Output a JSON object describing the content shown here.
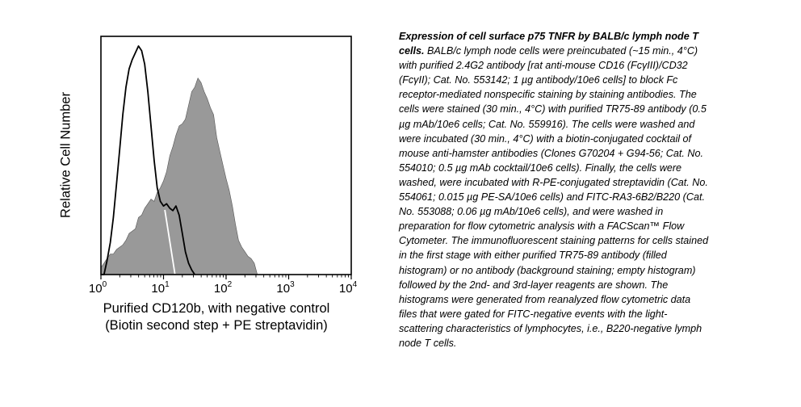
{
  "chart_data": {
    "type": "area",
    "xscale": "log",
    "xlim": [
      1,
      10000
    ],
    "ylim": [
      0,
      100
    ],
    "ylabel": "Relative Cell Number",
    "xlabel_lines": [
      "Purified CD120b, with negative control",
      "(Biotin second step + PE streptavidin)"
    ],
    "xticks": [
      {
        "value": 1,
        "base": "10",
        "exp": "0"
      },
      {
        "value": 10,
        "base": "10",
        "exp": "1"
      },
      {
        "value": 100,
        "base": "10",
        "exp": "2"
      },
      {
        "value": 1000,
        "base": "10",
        "exp": "3"
      },
      {
        "value": 10000,
        "base": "10",
        "exp": "4"
      }
    ],
    "series": [
      {
        "style": "filled",
        "fill": "#999999",
        "x": [
          1.0,
          1.12,
          1.25,
          1.41,
          1.58,
          1.78,
          2.0,
          2.24,
          2.51,
          2.82,
          3.16,
          3.55,
          3.98,
          4.47,
          5.01,
          5.62,
          6.31,
          7.08,
          7.94,
          8.91,
          10.0,
          11.2,
          12.6,
          14.1,
          15.8,
          17.8,
          20.0,
          22.4,
          25.1,
          28.2,
          31.6,
          35.5,
          39.8,
          44.7,
          50.1,
          56.2,
          63.1,
          70.8,
          79.4,
          89.1,
          100,
          112,
          126,
          141,
          158,
          178,
          200,
          224,
          251,
          282,
          316
        ],
        "values": [
          3,
          5,
          7,
          9,
          9,
          11,
          12,
          13,
          15,
          18,
          19,
          20,
          25,
          26,
          29,
          31,
          33,
          32,
          36,
          38,
          41,
          45,
          52,
          56,
          61,
          65,
          66,
          68,
          74,
          80,
          82,
          86,
          84,
          80,
          77,
          73,
          70,
          60,
          54,
          48,
          42,
          37,
          30,
          22,
          15,
          12,
          10,
          8,
          7,
          5,
          0
        ]
      },
      {
        "style": "outline",
        "stroke": "#000000",
        "x": [
          1.0,
          1.12,
          1.25,
          1.41,
          1.58,
          1.78,
          2.0,
          2.24,
          2.51,
          2.82,
          3.16,
          3.55,
          3.98,
          4.47,
          5.01,
          5.62,
          6.31,
          7.08,
          7.94,
          8.91,
          10.0,
          11.2,
          12.6,
          14.1,
          15.8,
          17.8,
          20.0,
          22.4,
          25.1,
          28.2,
          31.6
        ],
        "values": [
          0,
          0,
          6,
          14,
          25,
          40,
          55,
          70,
          82,
          90,
          94,
          97,
          100,
          98,
          92,
          80,
          65,
          50,
          38,
          32,
          30,
          31,
          29,
          28,
          30,
          26,
          18,
          10,
          5,
          2,
          0
        ]
      }
    ]
  },
  "caption": {
    "title": "Expression of cell surface p75 TNFR by BALB/c lymph node T cells.",
    "body": "BALB/c lymph node cells were preincubated (~15 min., 4°C) with purified 2.4G2 antibody [rat anti-mouse CD16 (FcγIII)/CD32 (FcγII); Cat. No. 553142; 1 µg antibody/10e6 cells] to block Fc receptor-mediated nonspecific staining by staining antibodies. The cells were stained (30 min., 4°C) with purified TR75-89 antibody (0.5 µg mAb/10e6 cells; Cat. No. 559916). The cells were washed and were incubated (30 min., 4°C) with a biotin-conjugated cocktail of mouse anti-hamster antibodies (Clones G70204 + G94-56; Cat. No. 554010; 0.5 µg mAb cocktail/10e6 cells). Finally, the cells were washed, were incubated with R-PE-conjugated streptavidin (Cat. No. 554061; 0.015 µg PE-SA/10e6 cells) and FITC-RA3-6B2/B220 (Cat. No. 553088; 0.06 µg mAb/10e6 cells), and were washed in preparation for flow cytometric analysis with a FACScan™ Flow Cytometer. The immunofluorescent staining patterns for cells stained in the first stage with either purified TR75-89 antibody (filled histogram) or no antibody (background staining; empty histogram) followed by the 2nd- and 3rd-layer reagents are shown. The histograms were generated from reanalyzed flow cytometric data files that were gated for FITC-negative events with the light-scattering characteristics of lymphocytes, i.e., B220-negative lymph node T cells."
  }
}
